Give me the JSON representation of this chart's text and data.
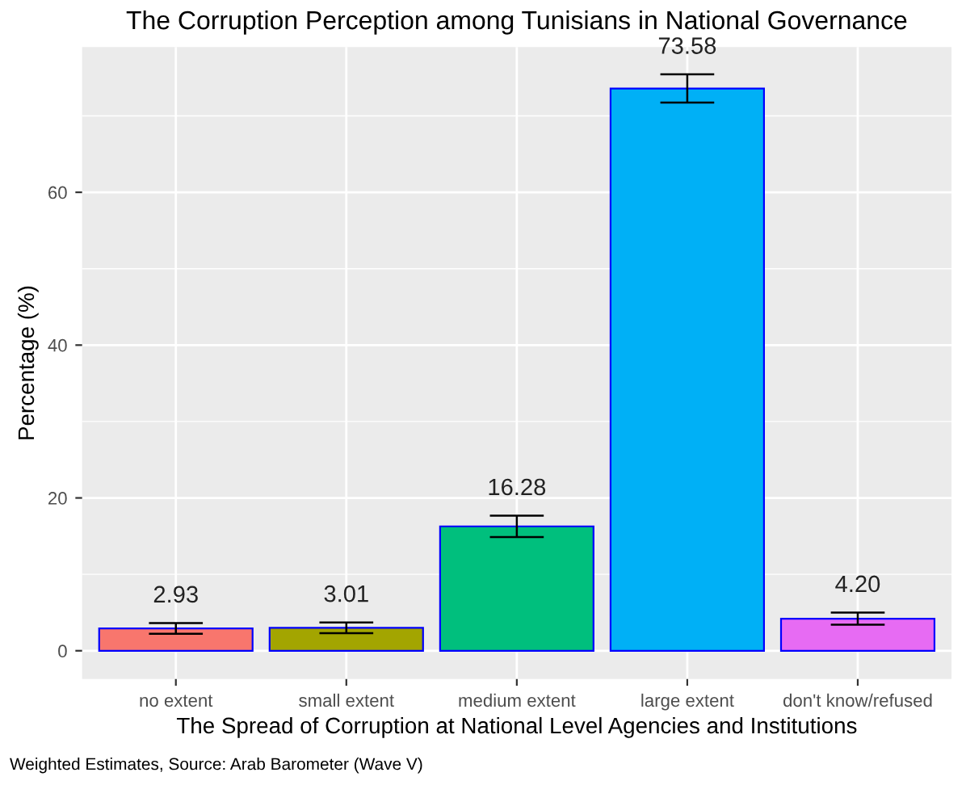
{
  "chart_data": {
    "type": "bar",
    "title": "The Corruption Perception among Tunisians in National Governance",
    "xlabel": "The Spread of Corruption at National Level Agencies and Institutions",
    "ylabel": "Percentage (%)",
    "categories": [
      "no extent",
      "small extent",
      "medium extent",
      "large extent",
      "don't know/refused"
    ],
    "values": [
      2.93,
      3.01,
      16.28,
      73.58,
      4.2
    ],
    "value_labels": [
      "2.93",
      "3.01",
      "16.28",
      "73.58",
      "4.20"
    ],
    "errors": [
      0.7,
      0.7,
      1.4,
      1.85,
      0.8
    ],
    "colors": [
      "#f8766d",
      "#a3a500",
      "#00bf7d",
      "#00b0f6",
      "#e76bf3"
    ],
    "ylim": [
      -3.7,
      79
    ],
    "yticks": [
      0,
      20,
      40,
      60
    ],
    "grid": true,
    "legend": false,
    "annotations": [
      "Weighted Estimates, Source: Arab Barometer (Wave V)"
    ]
  }
}
